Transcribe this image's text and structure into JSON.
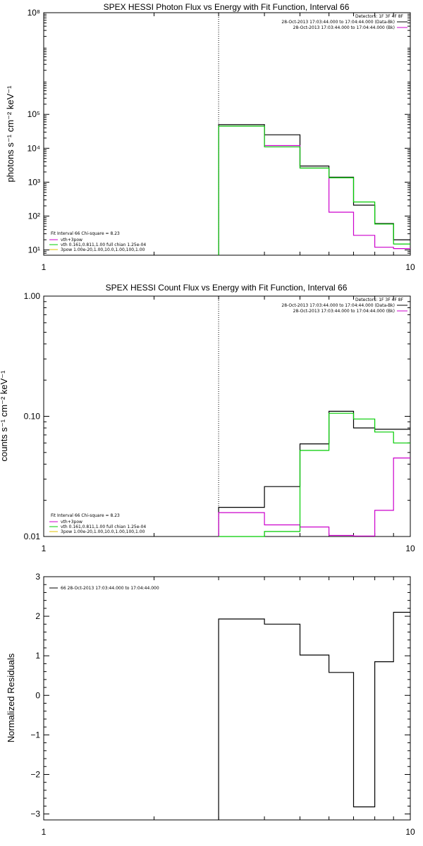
{
  "chart_data": [
    {
      "type": "line",
      "step": true,
      "title": "SPEX HESSI Photon Flux vs Energy with Fit Function, Interval 66",
      "xlabel": "",
      "ylabel": "photons s⁻¹ cm⁻² keV⁻¹",
      "xscale": "log",
      "yscale": "log",
      "xlim": [
        1,
        10
      ],
      "ylim": [
        7,
        100000000
      ],
      "x_ticks": [
        "1",
        "10"
      ],
      "y_ticks": [
        {
          "value": 10,
          "label": "10¹"
        },
        {
          "value": 100,
          "label": "10²"
        },
        {
          "value": 1000,
          "label": "10³"
        },
        {
          "value": 10000,
          "label": "10⁴"
        },
        {
          "value": 100000,
          "label": "10⁵"
        },
        {
          "value": 100000000,
          "label": "10⁸"
        }
      ],
      "vline_x": 3,
      "bin_edges": [
        3,
        4,
        5,
        6,
        7,
        8,
        9,
        10
      ],
      "series": [
        {
          "name": "",
          "color": "#000000",
          "values": [
            50000,
            25000,
            3000,
            1400,
            210,
            60,
            20
          ]
        },
        {
          "name": "vth+3pow",
          "color": "#cc00cc",
          "values": [
            45000,
            12000,
            2600,
            130,
            27,
            12,
            11
          ]
        },
        {
          "name": "vth 0.161,0.811,1.00 full chian 1.25e-04",
          "color": "#00cc00",
          "values": [
            45000,
            11000,
            2600,
            1350,
            260,
            58,
            15
          ]
        }
      ],
      "legend_right": {
        "title": "Detectors: 1F 3F 4F 8F",
        "entries": [
          {
            "text": "28-Oct-2013 17:03:44.000 to 17:04:44.000 (Data-Bk)",
            "color": "#000000"
          },
          {
            "text": "28-Oct-2013 17:03:44.000 to 17:04:44.000 (Bk)",
            "color": "#cc00cc"
          }
        ]
      },
      "legend_left": {
        "title": "Fit Interval 66   Chi-square = 8.23",
        "entries": [
          {
            "text": "vth+3pow",
            "color": "#cc00cc"
          },
          {
            "text": "vth 0.161,0.811,1.00  full chian 1.25e-04",
            "color": "#00cc00"
          },
          {
            "text": "3pow 1.00e-20,1.00,10.0,1.00,100,1.00",
            "color": "#e0c000"
          }
        ]
      }
    },
    {
      "type": "line",
      "step": true,
      "title": "SPEX HESSI Count Flux vs Energy with Fit Function, Interval 66",
      "xlabel": "",
      "ylabel": "counts s⁻¹ cm⁻² keV⁻¹",
      "xscale": "log",
      "yscale": "log",
      "xlim": [
        1,
        10
      ],
      "ylim": [
        0.01,
        1.0
      ],
      "x_ticks": [
        "1",
        "10"
      ],
      "y_ticks": [
        {
          "value": 0.01,
          "label": "0.01"
        },
        {
          "value": 0.1,
          "label": "0.10"
        },
        {
          "value": 1.0,
          "label": "1.00"
        }
      ],
      "vline_x": 3,
      "bin_edges": [
        3,
        4,
        5,
        6,
        7,
        8,
        9,
        10
      ],
      "series": [
        {
          "name": "",
          "color": "#000000",
          "values": [
            0.0175,
            0.026,
            0.059,
            0.11,
            0.08,
            0.078,
            0.078
          ]
        },
        {
          "name": "vth+3pow",
          "color": "#cc00cc",
          "values": [
            0.0158,
            0.0125,
            0.012,
            0.0102,
            0.0101,
            0.0165,
            0.045
          ]
        },
        {
          "name": "vth 0.161,0.811,1.00 full chian 1.25e-04",
          "color": "#00cc00",
          "values": [
            0.0095,
            0.011,
            0.052,
            0.106,
            0.095,
            0.074,
            0.06
          ]
        }
      ],
      "legend_right": {
        "title": "Detectors: 1F 3F 4F 8F",
        "entries": [
          {
            "text": "28-Oct-2013 17:03:44.000 to 17:04:44.000 (Data-Bk)",
            "color": "#000000"
          },
          {
            "text": "28-Oct-2013 17:03:44.000 to 17:04:44.000 (Bk)",
            "color": "#cc00cc"
          }
        ]
      },
      "legend_left": {
        "title": "Fit Interval 66   Chi-square = 8.23",
        "entries": [
          {
            "text": "vth+3pow",
            "color": "#cc00cc"
          },
          {
            "text": "vth 0.161,0.811,1.00  full chian 1.25e-04",
            "color": "#00cc00"
          },
          {
            "text": "3pow 1.00e-20,1.00,10.0,1.00,100,1.00",
            "color": "#e0c000"
          }
        ]
      }
    },
    {
      "type": "line",
      "step": true,
      "title": "",
      "xlabel": "",
      "ylabel": "Normalized Residuals",
      "xscale": "log",
      "yscale": "linear",
      "xlim": [
        1,
        10
      ],
      "ylim": [
        -3.15,
        3
      ],
      "x_ticks": [
        "1",
        "10"
      ],
      "y_ticks": [
        {
          "value": -3,
          "label": "−3"
        },
        {
          "value": -2,
          "label": "−2"
        },
        {
          "value": -1,
          "label": "−1"
        },
        {
          "value": 0,
          "label": "0"
        },
        {
          "value": 1,
          "label": "1"
        },
        {
          "value": 2,
          "label": "2"
        },
        {
          "value": 3,
          "label": "3"
        }
      ],
      "bin_edges": [
        3,
        4,
        5,
        6,
        7,
        8,
        9,
        10
      ],
      "series": [
        {
          "name": "66  28-Oct-2013 17:03:44.000 to 17:04:44.000",
          "color": "#000000",
          "values": [
            1.93,
            1.8,
            1.02,
            0.58,
            -2.82,
            0.85,
            2.1
          ]
        }
      ],
      "legend_left": {
        "title": "",
        "entries": [
          {
            "text": "66  28-Oct-2013 17:03:44.000 to 17:04:44.000",
            "color": "#000000"
          }
        ]
      }
    }
  ]
}
